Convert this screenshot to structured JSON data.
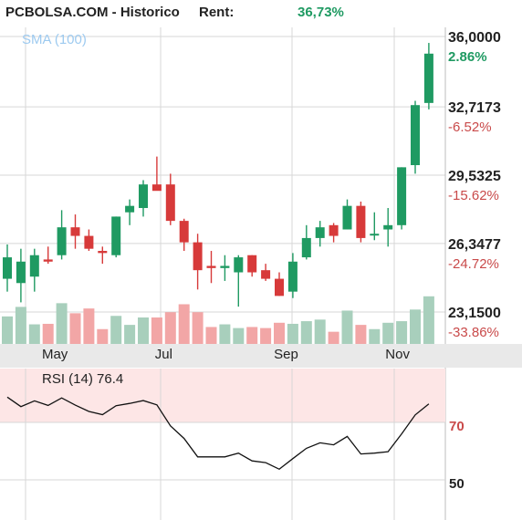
{
  "header": {
    "title": "PCBOLSA.COM - Historico",
    "rent_label": "Rent:",
    "rent_value": "36,73%"
  },
  "sma_label": "SMA (100)",
  "rsi_label": "RSI (14) 76.4",
  "colors": {
    "up": "#1f9a62",
    "down": "#d73a3a",
    "vol_up": "#a8cfbc",
    "vol_down": "#f2a6a6",
    "rsi_band": "#fde6e6",
    "grid": "#d7d7d7",
    "axis_band": "#e9e9e9",
    "negative_text": "#c94a4a",
    "positive_text": "#1f9a62"
  },
  "chart_data": {
    "type": "candlestick",
    "y_ticks": [
      {
        "price": "36,0000",
        "pct": "2.86%",
        "value": 36.0
      },
      {
        "price": "32,7173",
        "pct": "-6.52%",
        "value": 32.7173
      },
      {
        "price": "29,5325",
        "pct": "-15.62%",
        "value": 29.5325
      },
      {
        "price": "26,3477",
        "pct": "-24.72%",
        "value": 26.3477
      },
      {
        "price": "23,1500",
        "pct": "-33.86%",
        "value": 23.15
      }
    ],
    "x_labels": [
      {
        "label": "May",
        "index": 3.5
      },
      {
        "label": "Jul",
        "index": 11.5
      },
      {
        "label": "Sep",
        "index": 20.5
      },
      {
        "label": "Nov",
        "index": 28.7
      }
    ],
    "candles": [
      {
        "o": 24.7,
        "h": 26.3,
        "l": 24.1,
        "c": 25.7,
        "v": 0.52
      },
      {
        "o": 24.5,
        "h": 26.1,
        "l": 23.6,
        "c": 25.5,
        "v": 0.7
      },
      {
        "o": 24.8,
        "h": 26.1,
        "l": 24.1,
        "c": 25.8,
        "v": 0.37
      },
      {
        "o": 25.6,
        "h": 26.2,
        "l": 25.4,
        "c": 25.5,
        "v": 0.38
      },
      {
        "o": 25.8,
        "h": 27.9,
        "l": 25.6,
        "c": 27.1,
        "v": 0.77
      },
      {
        "o": 27.1,
        "h": 27.7,
        "l": 26.1,
        "c": 26.7,
        "v": 0.58
      },
      {
        "o": 26.7,
        "h": 27.0,
        "l": 26.0,
        "c": 26.1,
        "v": 0.67
      },
      {
        "o": 26.0,
        "h": 26.2,
        "l": 25.4,
        "c": 25.9,
        "v": 0.28
      },
      {
        "o": 25.8,
        "h": 27.6,
        "l": 25.7,
        "c": 27.6,
        "v": 0.53
      },
      {
        "o": 27.8,
        "h": 28.4,
        "l": 27.2,
        "c": 28.1,
        "v": 0.36
      },
      {
        "o": 28.0,
        "h": 29.3,
        "l": 27.6,
        "c": 29.1,
        "v": 0.5
      },
      {
        "o": 29.1,
        "h": 30.4,
        "l": 28.9,
        "c": 28.8,
        "v": 0.5
      },
      {
        "o": 29.1,
        "h": 29.6,
        "l": 27.2,
        "c": 27.4,
        "v": 0.6
      },
      {
        "o": 27.4,
        "h": 27.5,
        "l": 26.0,
        "c": 26.4,
        "v": 0.75
      },
      {
        "o": 26.4,
        "h": 26.8,
        "l": 24.2,
        "c": 25.1,
        "v": 0.6
      },
      {
        "o": 25.3,
        "h": 26.0,
        "l": 24.5,
        "c": 25.2,
        "v": 0.32
      },
      {
        "o": 25.2,
        "h": 25.8,
        "l": 24.6,
        "c": 25.3,
        "v": 0.37
      },
      {
        "o": 25.0,
        "h": 25.8,
        "l": 23.4,
        "c": 25.7,
        "v": 0.3
      },
      {
        "o": 25.8,
        "h": 25.8,
        "l": 24.8,
        "c": 25.0,
        "v": 0.32
      },
      {
        "o": 25.1,
        "h": 25.4,
        "l": 24.6,
        "c": 24.7,
        "v": 0.3
      },
      {
        "o": 24.7,
        "h": 25.0,
        "l": 23.9,
        "c": 23.9,
        "v": 0.4
      },
      {
        "o": 24.1,
        "h": 25.9,
        "l": 23.8,
        "c": 25.5,
        "v": 0.38
      },
      {
        "o": 25.7,
        "h": 27.2,
        "l": 25.6,
        "c": 26.6,
        "v": 0.43
      },
      {
        "o": 26.6,
        "h": 27.4,
        "l": 26.2,
        "c": 27.1,
        "v": 0.46
      },
      {
        "o": 27.2,
        "h": 27.3,
        "l": 26.4,
        "c": 26.7,
        "v": 0.23
      },
      {
        "o": 27.0,
        "h": 28.4,
        "l": 27.0,
        "c": 28.1,
        "v": 0.63
      },
      {
        "o": 28.1,
        "h": 28.3,
        "l": 26.4,
        "c": 26.6,
        "v": 0.36
      },
      {
        "o": 26.8,
        "h": 27.8,
        "l": 26.5,
        "c": 26.8,
        "v": 0.28
      },
      {
        "o": 27.0,
        "h": 28.0,
        "l": 26.2,
        "c": 27.2,
        "v": 0.4
      },
      {
        "o": 27.2,
        "h": 29.9,
        "l": 27.0,
        "c": 29.9,
        "v": 0.43
      },
      {
        "o": 30.0,
        "h": 33.0,
        "l": 29.6,
        "c": 32.8,
        "v": 0.65
      },
      {
        "o": 32.9,
        "h": 35.7,
        "l": 32.6,
        "c": 35.2,
        "v": 0.9
      }
    ],
    "rsi": {
      "label": "RSI (14)",
      "current": 76.4,
      "reference_ticks": [
        70,
        50
      ],
      "values": [
        78.8,
        75.5,
        77.5,
        75.9,
        78.5,
        76.0,
        73.8,
        72.7,
        75.8,
        76.6,
        77.6,
        76.1,
        68.8,
        64.4,
        58.0,
        58.0,
        58.0,
        59.3,
        56.6,
        56.0,
        53.7,
        57.4,
        61.0,
        62.9,
        62.2,
        65.1,
        59.0,
        59.3,
        59.8,
        66.0,
        72.6,
        76.4
      ]
    }
  }
}
